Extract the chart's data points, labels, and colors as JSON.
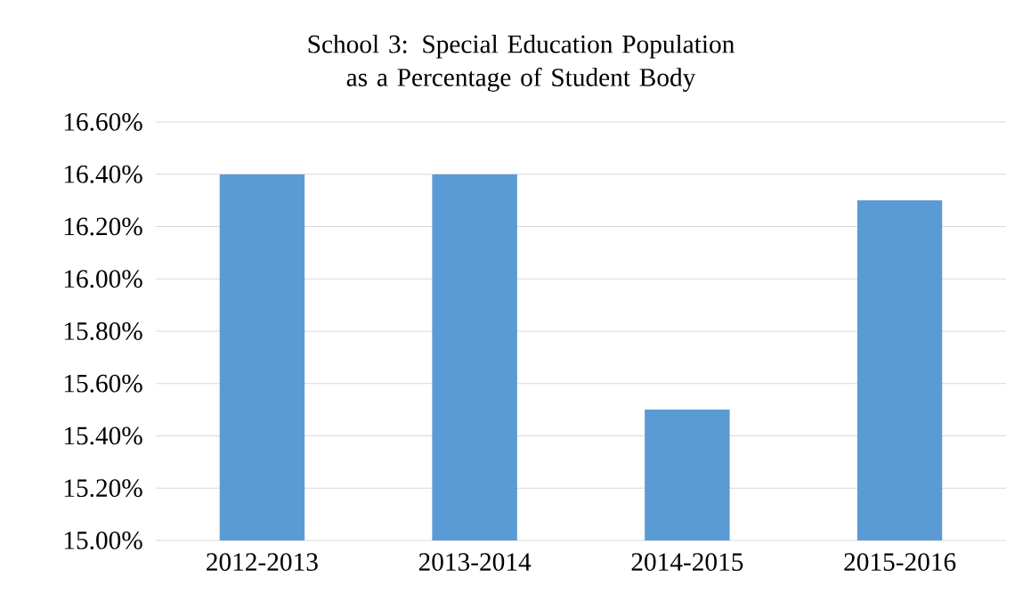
{
  "chart_data": {
    "type": "bar",
    "title": "School 3:  Special Education Population as a Percentage of Student Body",
    "categories": [
      "2012-2013",
      "2013-2014",
      "2014-2015",
      "2015-2016"
    ],
    "values": [
      16.4,
      16.4,
      15.5,
      16.3
    ],
    "color": "#5b9bd5",
    "ylim": [
      15,
      16.6
    ],
    "yticks": [
      {
        "value": 15,
        "label": "15.00%"
      },
      {
        "value": 15.2,
        "label": "15.20%"
      },
      {
        "value": 15.4,
        "label": "15.40%"
      },
      {
        "value": 15.6,
        "label": "15.60%"
      },
      {
        "value": 15.8,
        "label": "15.80%"
      },
      {
        "value": 16,
        "label": "16.00%"
      },
      {
        "value": 16.2,
        "label": "16.20%"
      },
      {
        "value": 16.4,
        "label": "16.40%"
      },
      {
        "value": 16.6,
        "label": "16.60%"
      }
    ],
    "grid": "y"
  }
}
